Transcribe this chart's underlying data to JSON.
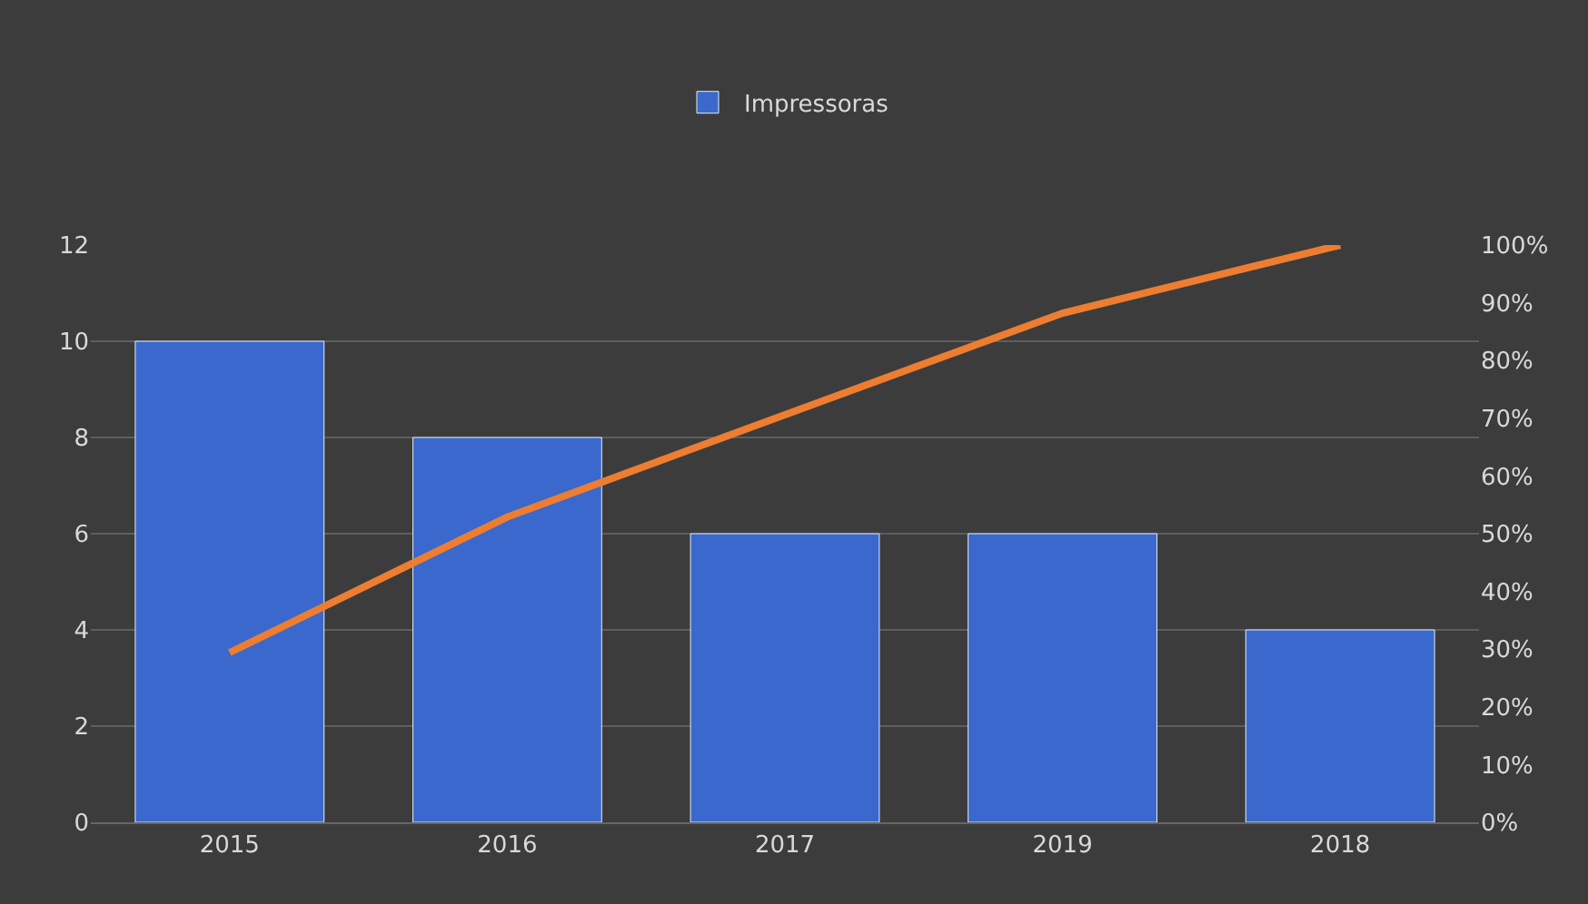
{
  "chart_data": {
    "type": "bar",
    "categories": [
      "2015",
      "2016",
      "2017",
      "2019",
      "2018"
    ],
    "series": [
      {
        "name": "Impressoras",
        "color": "#3a68cc",
        "values": [
          10,
          8,
          6,
          6,
          4
        ]
      },
      {
        "type": "line",
        "axis": "y2",
        "color": "#ed7d31",
        "values": [
          29.4,
          52.9,
          70.6,
          88.2,
          100
        ]
      }
    ],
    "ylim": [
      0,
      12
    ],
    "yticks": [
      0,
      2,
      4,
      6,
      8,
      10,
      12
    ],
    "y2lim": [
      0,
      100
    ],
    "y2ticks": [
      {
        "value": 0,
        "label": "0%"
      },
      {
        "value": 10,
        "label": "10%"
      },
      {
        "value": 20,
        "label": "20%"
      },
      {
        "value": 30,
        "label": "30%"
      },
      {
        "value": 40,
        "label": "40%"
      },
      {
        "value": 50,
        "label": "50%"
      },
      {
        "value": 60,
        "label": "60%"
      },
      {
        "value": 70,
        "label": "70%"
      },
      {
        "value": 80,
        "label": "80%"
      },
      {
        "value": 90,
        "label": "90%"
      },
      {
        "value": 100,
        "label": "100%"
      }
    ],
    "grid": "y",
    "legend": "top",
    "marker": "none"
  }
}
